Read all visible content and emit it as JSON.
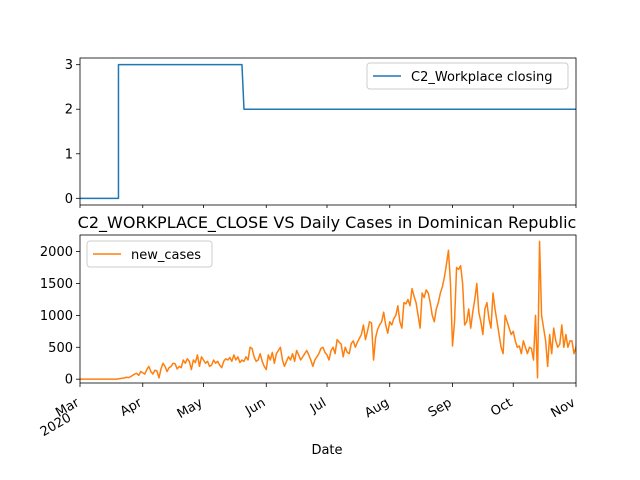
{
  "chart_data": [
    {
      "type": "line",
      "title": "",
      "series": [
        {
          "name": "C2_Workplace closing",
          "color": "#1f77b4",
          "points": [
            [
              "2020-03-01",
              0
            ],
            [
              "2020-03-20",
              0
            ],
            [
              "2020-03-20",
              3
            ],
            [
              "2020-03-21",
              3
            ],
            [
              "2020-05-20",
              3
            ],
            [
              "2020-05-21",
              2
            ],
            [
              "2020-11-01",
              2
            ]
          ]
        }
      ],
      "yticks": [
        0,
        1,
        2,
        3
      ],
      "ylim": [
        -0.15,
        3.15
      ],
      "xlim": [
        "2020-03-01",
        "2020-11-01"
      ],
      "legend": "upper right"
    },
    {
      "type": "line",
      "title": "C2_WORKPLACE_CLOSE VS Daily Cases in Dominican Republic",
      "xlabel": "Date",
      "series": [
        {
          "name": "new_cases",
          "color": "#ff7f0e",
          "start": "2020-03-01",
          "values": [
            0,
            0,
            0,
            0,
            0,
            0,
            0,
            0,
            0,
            0,
            0,
            0,
            0,
            0,
            0,
            0,
            0,
            0,
            0,
            5,
            10,
            15,
            20,
            30,
            25,
            40,
            60,
            80,
            90,
            60,
            120,
            100,
            80,
            150,
            200,
            120,
            80,
            140,
            130,
            20,
            160,
            250,
            200,
            120,
            180,
            200,
            250,
            240,
            160,
            200,
            180,
            300,
            250,
            320,
            280,
            150,
            300,
            260,
            380,
            200,
            350,
            300,
            250,
            280,
            200,
            220,
            300,
            250,
            280,
            220,
            180,
            280,
            320,
            300,
            340,
            280,
            380,
            300,
            350,
            260,
            300,
            280,
            350,
            300,
            500,
            480,
            350,
            280,
            300,
            400,
            280,
            200,
            150,
            380,
            300,
            420,
            250,
            400,
            450,
            500,
            300,
            200,
            280,
            350,
            300,
            400,
            280,
            450,
            380,
            300,
            350,
            400,
            450,
            380,
            300,
            200,
            300,
            350,
            400,
            480,
            500,
            420,
            380,
            300,
            450,
            500,
            400,
            620,
            580,
            550,
            350,
            500,
            420,
            400,
            560,
            600,
            500,
            580,
            640,
            700,
            850,
            620,
            750,
            900,
            880,
            300,
            650,
            780,
            850,
            900,
            1050,
            850,
            720,
            900,
            850,
            950,
            1000,
            1150,
            900,
            800,
            1200,
            1180,
            1250,
            1150,
            1420,
            1300,
            1200,
            1000,
            800,
            1350,
            1280,
            1400,
            1350,
            1200,
            1000,
            900,
            1100,
            1200,
            1350,
            1450,
            1600,
            1800,
            2020,
            1500,
            520,
            900,
            1750,
            1720,
            1780,
            1500,
            850,
            900,
            1100,
            800,
            1050,
            1250,
            1500,
            1050,
            900,
            700,
            1100,
            1200,
            950,
            800,
            1350,
            1100,
            900,
            700,
            500,
            400,
            1000,
            900,
            800,
            700,
            750,
            600,
            500,
            520,
            400,
            600,
            500,
            400,
            500,
            480,
            300,
            1000,
            20,
            2160,
            1000,
            800,
            600,
            200,
            700,
            400,
            800,
            600,
            500,
            550,
            850,
            500,
            700,
            500,
            600,
            600,
            400,
            500,
            800,
            550,
            600,
            500,
            400,
            450,
            500,
            350,
            480,
            400,
            300,
            500,
            400,
            500,
            450,
            600,
            350,
            300,
            500,
            800,
            750,
            600,
            550,
            700,
            400,
            600,
            450,
            500,
            400,
            300,
            650,
            450,
            350,
            300,
            400,
            450,
            500,
            300,
            550,
            450,
            400,
            350,
            500,
            300,
            200,
            1150,
            400,
            300,
            200,
            500,
            400,
            600,
            700
          ]
        }
      ],
      "yticks": [
        0,
        500,
        1000,
        1500,
        2000
      ],
      "ylim": [
        -60,
        2260
      ],
      "xlim": [
        "2020-03-01",
        "2020-11-01"
      ],
      "xticks": [
        {
          "date": "2020-03-01",
          "label": "Mar",
          "sublabel": "2020"
        },
        {
          "date": "2020-04-01",
          "label": "Apr"
        },
        {
          "date": "2020-05-01",
          "label": "May"
        },
        {
          "date": "2020-06-01",
          "label": "Jun"
        },
        {
          "date": "2020-07-01",
          "label": "Jul"
        },
        {
          "date": "2020-08-01",
          "label": "Aug"
        },
        {
          "date": "2020-09-01",
          "label": "Sep"
        },
        {
          "date": "2020-10-01",
          "label": "Oct"
        },
        {
          "date": "2020-11-01",
          "label": "Nov"
        }
      ],
      "legend": "upper left"
    }
  ]
}
